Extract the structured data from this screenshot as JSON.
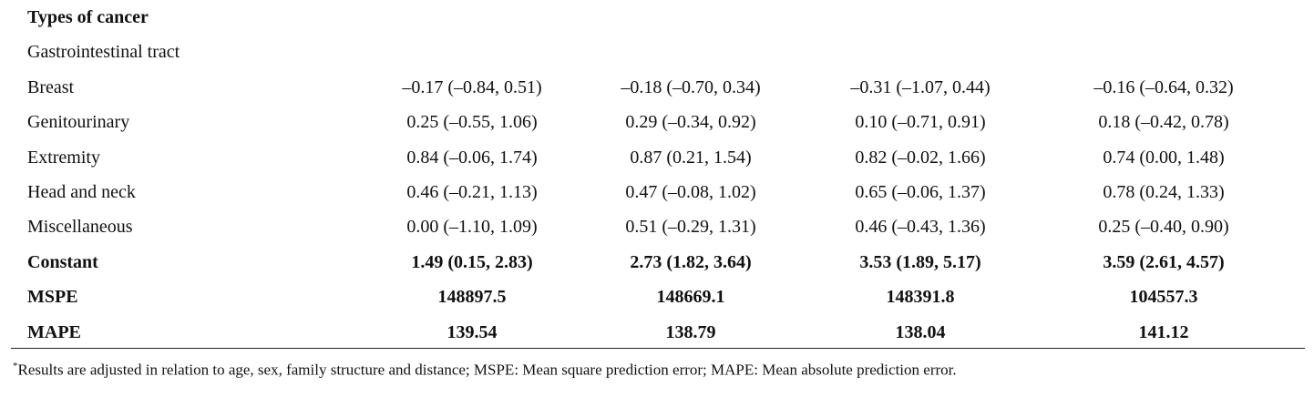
{
  "table": {
    "rows": [
      {
        "cells": [
          "Types of cancer"
        ],
        "bold": true
      },
      {
        "cells": [
          "Gastrointestinal tract"
        ]
      },
      {
        "cells": [
          "Breast",
          "–0.17 (–0.84, 0.51)",
          "–0.18 (–0.70, 0.34)",
          "–0.31 (–1.07, 0.44)",
          "–0.16 (–0.64, 0.32)"
        ]
      },
      {
        "cells": [
          "Genitourinary",
          "0.25 (–0.55, 1.06)",
          "0.29 (–0.34, 0.92)",
          "0.10 (–0.71, 0.91)",
          "0.18 (–0.42, 0.78)"
        ]
      },
      {
        "cells": [
          "Extremity",
          "0.84 (–0.06, 1.74)",
          "0.87 (0.21, 1.54)",
          "0.82 (–0.02, 1.66)",
          "0.74 (0.00, 1.48)"
        ]
      },
      {
        "cells": [
          "Head and neck",
          "0.46 (–0.21, 1.13)",
          "0.47 (–0.08, 1.02)",
          "0.65 (–0.06, 1.37)",
          "0.78 (0.24, 1.33)"
        ]
      },
      {
        "cells": [
          "Miscellaneous",
          "0.00 (–1.10, 1.09)",
          "0.51 (–0.29, 1.31)",
          "0.46 (–0.43, 1.36)",
          "0.25 (–0.40, 0.90)"
        ]
      },
      {
        "cells": [
          "Constant",
          "1.49 (0.15, 2.83)",
          "2.73 (1.82, 3.64)",
          "3.53 (1.89, 5.17)",
          "3.59 (2.61, 4.57)"
        ],
        "bold": true
      },
      {
        "cells": [
          "MSPE",
          "148897.5",
          "148669.1",
          "148391.8",
          "104557.3"
        ],
        "bold": true
      },
      {
        "cells": [
          "MAPE",
          "139.54",
          "138.79",
          "138.04",
          "141.12"
        ],
        "bold": true
      }
    ]
  },
  "footnote": {
    "marker": "*",
    "text": "Results are adjusted in relation to age, sex, family structure and distance; MSPE: Mean square prediction error; MAPE: Mean absolute prediction error."
  }
}
